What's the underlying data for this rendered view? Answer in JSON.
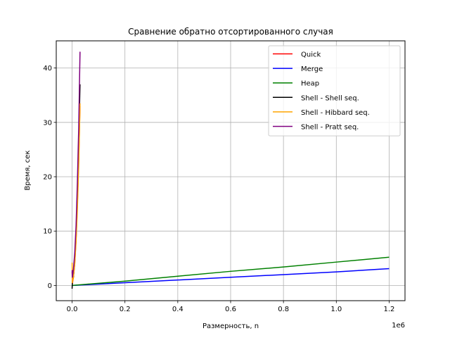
{
  "chart_data": {
    "type": "line",
    "title": "Сравнение обратно отсортированного случая",
    "xlabel": "Размерность, n",
    "ylabel": "Время, сек",
    "x_offset_label": "1e6",
    "xlim": [
      -60000,
      1260000
    ],
    "ylim": [
      -2.8,
      45
    ],
    "x_ticks": [
      0,
      200000,
      400000,
      600000,
      800000,
      1000000,
      1200000
    ],
    "x_tick_labels": [
      "0.0",
      "0.2",
      "0.4",
      "0.6",
      "0.8",
      "1.0",
      "1.2"
    ],
    "y_ticks": [
      0,
      10,
      20,
      30,
      40
    ],
    "y_tick_labels": [
      "0",
      "10",
      "20",
      "30",
      "40"
    ],
    "grid": true,
    "legend_position": "upper right",
    "series": [
      {
        "name": "Quick",
        "color": "#ff0000",
        "x": [
          0,
          1000,
          5000,
          10000,
          15000,
          20000,
          25000,
          30000
        ],
        "y": [
          2.5,
          0.3,
          1.5,
          4,
          8.5,
          15,
          23,
          33
        ]
      },
      {
        "name": "Merge",
        "color": "#0000ff",
        "x": [
          0,
          200000,
          400000,
          600000,
          800000,
          1000000,
          1200000
        ],
        "y": [
          0,
          0.5,
          1.0,
          1.5,
          2.0,
          2.5,
          3.1
        ]
      },
      {
        "name": "Heap",
        "color": "#008000",
        "x": [
          0,
          200000,
          400000,
          600000,
          800000,
          1000000,
          1200000
        ],
        "y": [
          0,
          0.8,
          1.7,
          2.6,
          3.4,
          4.3,
          5.2
        ]
      },
      {
        "name": "Shell - Shell seq.",
        "color": "#000000",
        "x": [
          0,
          1000,
          5000,
          10000,
          15000,
          20000,
          25000,
          30000
        ],
        "y": [
          -0.6,
          0.8,
          1.5,
          4.5,
          9.5,
          17,
          26,
          37
        ]
      },
      {
        "name": "Shell - Hibbard seq.",
        "color": "#ffa500",
        "x": [
          0,
          1000,
          5000,
          10000,
          15000,
          20000,
          25000,
          30000
        ],
        "y": [
          4.2,
          0.5,
          1.5,
          4,
          8,
          14,
          22,
          33.5
        ]
      },
      {
        "name": "Shell - Pratt seq.",
        "color": "#800080",
        "x": [
          0,
          1000,
          5000,
          10000,
          15000,
          20000,
          25000,
          30000
        ],
        "y": [
          2.8,
          1.5,
          3,
          6,
          11,
          19,
          29,
          43
        ]
      }
    ]
  }
}
